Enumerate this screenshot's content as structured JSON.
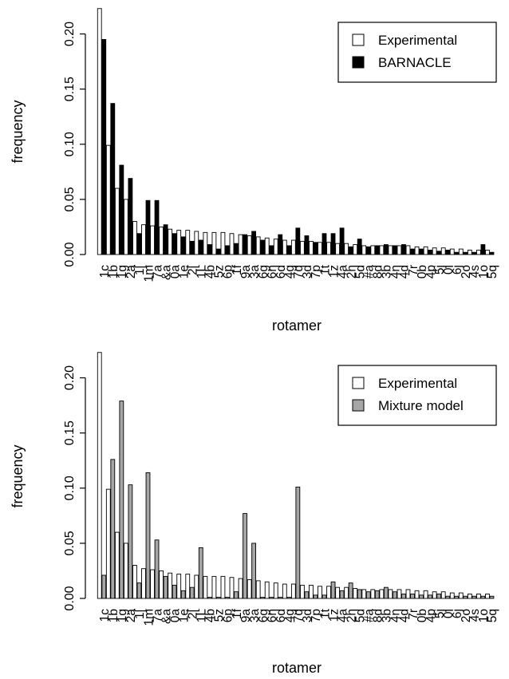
{
  "chart_data": [
    {
      "type": "bar",
      "xlabel": "rotamer",
      "ylabel": "frequency",
      "ylim": [
        0,
        0.225
      ],
      "yticks": [
        "0.00",
        "0.05",
        "0.10",
        "0.15",
        "0.20"
      ],
      "legend_position": "top-right",
      "categories": [
        "1c",
        "1b",
        "1g",
        "2a",
        "1[",
        "1m",
        "7a",
        "&a",
        "0a",
        "1e",
        "2[",
        "1L",
        "4b",
        "5z",
        "6p",
        "1f",
        "9a",
        "3a",
        "6g",
        "6n",
        "6d",
        "4g",
        "7d",
        "3d",
        "7p",
        "1t",
        "1z",
        "4a",
        "2h",
        "5d",
        "#a",
        "8d",
        "3b",
        "4n",
        "4d",
        "7r",
        "0b",
        "4p",
        "5j",
        "0i",
        "6j",
        "2o",
        "4s",
        "1o",
        "5q"
      ],
      "series": [
        {
          "name": "Experimental",
          "color": "#ffffff",
          "values": [
            0.223,
            0.099,
            0.06,
            0.05,
            0.03,
            0.027,
            0.026,
            0.025,
            0.023,
            0.022,
            0.022,
            0.021,
            0.02,
            0.02,
            0.02,
            0.019,
            0.018,
            0.017,
            0.016,
            0.015,
            0.014,
            0.013,
            0.013,
            0.012,
            0.012,
            0.011,
            0.011,
            0.01,
            0.01,
            0.009,
            0.008,
            0.008,
            0.008,
            0.008,
            0.008,
            0.008,
            0.007,
            0.007,
            0.006,
            0.006,
            0.005,
            0.005,
            0.004,
            0.004,
            0.004
          ]
        },
        {
          "name": "BARNACLE",
          "color": "#000000",
          "values": [
            0.195,
            0.137,
            0.081,
            0.069,
            0.019,
            0.049,
            0.049,
            0.027,
            0.019,
            0.016,
            0.012,
            0.013,
            0.009,
            0.005,
            0.008,
            0.01,
            0.018,
            0.021,
            0.013,
            0.008,
            0.018,
            0.008,
            0.024,
            0.017,
            0.011,
            0.019,
            0.019,
            0.024,
            0.007,
            0.014,
            0.007,
            0.008,
            0.009,
            0.008,
            0.009,
            0.005,
            0.005,
            0.004,
            0.003,
            0.004,
            0.002,
            0.002,
            0.002,
            0.009,
            0.002
          ]
        }
      ]
    },
    {
      "type": "bar",
      "xlabel": "rotamer",
      "ylabel": "frequency",
      "ylim": [
        0,
        0.225
      ],
      "yticks": [
        "0.00",
        "0.05",
        "0.10",
        "0.15",
        "0.20"
      ],
      "legend_position": "top-right",
      "categories": [
        "1c",
        "1b",
        "1g",
        "2a",
        "1[",
        "1m",
        "7a",
        "&a",
        "0a",
        "1e",
        "2[",
        "1L",
        "4b",
        "5z",
        "6p",
        "1f",
        "9a",
        "3a",
        "6g",
        "6n",
        "6d",
        "4g",
        "7d",
        "3d",
        "7p",
        "1t",
        "1z",
        "4a",
        "2h",
        "5d",
        "#a",
        "8d",
        "3b",
        "4n",
        "4d",
        "7r",
        "0b",
        "4p",
        "5j",
        "0i",
        "6j",
        "2o",
        "4s",
        "1o",
        "5q"
      ],
      "series": [
        {
          "name": "Experimental",
          "color": "#ffffff",
          "values": [
            0.223,
            0.099,
            0.06,
            0.05,
            0.03,
            0.027,
            0.026,
            0.025,
            0.023,
            0.022,
            0.022,
            0.021,
            0.02,
            0.02,
            0.02,
            0.019,
            0.018,
            0.017,
            0.016,
            0.015,
            0.014,
            0.013,
            0.013,
            0.012,
            0.012,
            0.011,
            0.011,
            0.01,
            0.01,
            0.009,
            0.008,
            0.008,
            0.008,
            0.008,
            0.008,
            0.008,
            0.007,
            0.007,
            0.006,
            0.006,
            0.005,
            0.005,
            0.004,
            0.004,
            0.004
          ]
        },
        {
          "name": "Mixture model",
          "color": "#a6a6a6",
          "values": [
            0.021,
            0.126,
            0.179,
            0.103,
            0.014,
            0.114,
            0.053,
            0.02,
            0.012,
            0.007,
            0.01,
            0.046,
            0.001,
            0.001,
            0.001,
            0.006,
            0.077,
            0.05,
            0.001,
            0.001,
            0.001,
            0.001,
            0.101,
            0.006,
            0.003,
            0.003,
            0.015,
            0.007,
            0.014,
            0.008,
            0.006,
            0.007,
            0.01,
            0.006,
            0.004,
            0.004,
            0.003,
            0.003,
            0.004,
            0.002,
            0.002,
            0.002,
            0.002,
            0.002,
            0.002
          ]
        }
      ]
    }
  ]
}
